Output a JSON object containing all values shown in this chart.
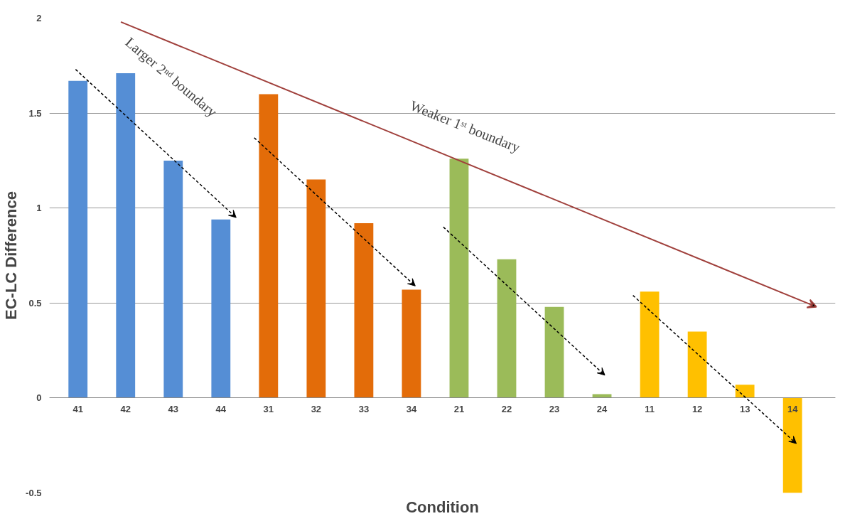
{
  "chart_data": {
    "type": "bar",
    "xlabel": "Condition",
    "ylabel": "EC-LC Difference",
    "categories": [
      "41",
      "42",
      "43",
      "44",
      "31",
      "32",
      "33",
      "34",
      "21",
      "22",
      "23",
      "24",
      "11",
      "12",
      "13",
      "14"
    ],
    "values": [
      1.67,
      1.71,
      1.25,
      0.94,
      1.6,
      1.15,
      0.92,
      0.57,
      1.26,
      0.73,
      0.48,
      0.02,
      0.56,
      0.35,
      0.07,
      -0.5
    ],
    "colors": [
      "#558ed5",
      "#558ed5",
      "#558ed5",
      "#558ed5",
      "#e36c09",
      "#e36c09",
      "#e36c09",
      "#e36c09",
      "#9bbb59",
      "#9bbb59",
      "#9bbb59",
      "#9bbb59",
      "#ffc000",
      "#ffc000",
      "#ffc000",
      "#ffc000"
    ],
    "ylim": [
      -0.5,
      2
    ],
    "yticks": [
      -0.5,
      0,
      0.5,
      1,
      1.5,
      2
    ],
    "grid": "y",
    "annotations": [
      "Larger 2ⁿᵈ boundary",
      "Weaker 1ˢᵗ boundary"
    ]
  }
}
